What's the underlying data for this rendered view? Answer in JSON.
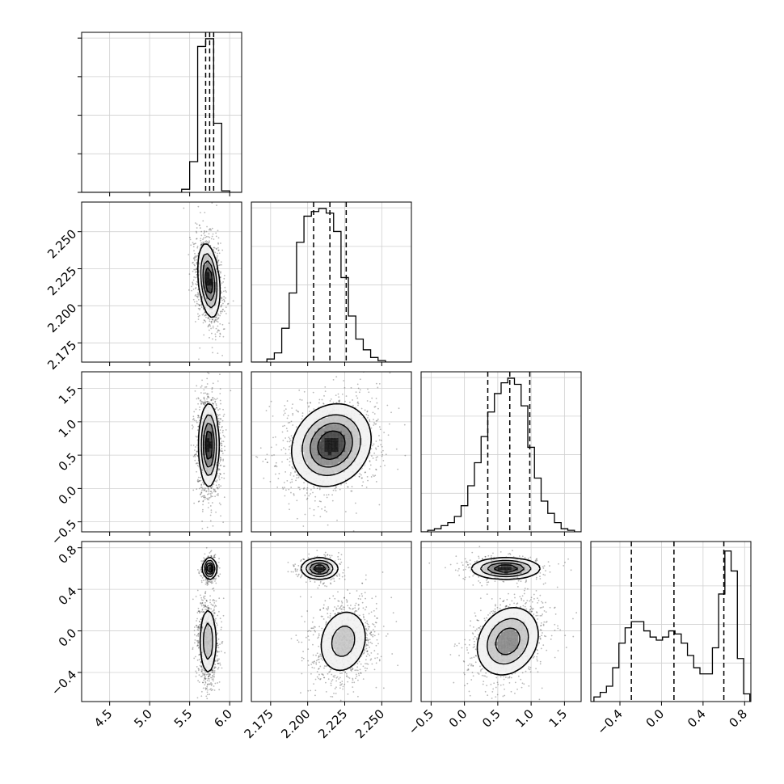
{
  "chart_data": {
    "type": "corner",
    "title": "",
    "grid": true,
    "params": [
      {
        "range": [
          4.15,
          6.15
        ],
        "ticks": [
          4.5,
          5.0,
          5.5,
          6.0
        ],
        "tick_labels": [
          "4.5",
          "5.0",
          "5.5",
          "6.0"
        ]
      },
      {
        "range": [
          2.162,
          2.27
        ],
        "ticks": [
          2.175,
          2.2,
          2.225,
          2.25
        ],
        "tick_labels": [
          "2.175",
          "2.200",
          "2.225",
          "2.250"
        ]
      },
      {
        "range": [
          -0.65,
          1.75
        ],
        "ticks": [
          -0.5,
          0.0,
          0.5,
          1.0,
          1.5
        ],
        "tick_labels": [
          "−0.5",
          "0.0",
          "0.5",
          "1.0",
          "1.5"
        ]
      },
      {
        "range": [
          -0.68,
          0.86
        ],
        "ticks": [
          -0.4,
          0.0,
          0.4,
          0.8
        ],
        "tick_labels": [
          "−0.4",
          "0.0",
          "0.4",
          "0.8"
        ]
      }
    ],
    "histograms": [
      {
        "x": [
          5.45,
          5.55,
          5.65,
          5.75,
          5.85,
          5.95
        ],
        "values": [
          0.02,
          0.2,
          0.95,
          1.0,
          0.45,
          0.01
        ],
        "quantiles": [
          5.7,
          5.75,
          5.8
        ]
      },
      {
        "x": [
          2.175,
          2.18,
          2.185,
          2.19,
          2.195,
          2.2,
          2.205,
          2.21,
          2.215,
          2.22,
          2.225,
          2.23,
          2.235,
          2.24,
          2.245,
          2.25,
          2.255
        ],
        "values": [
          0.02,
          0.06,
          0.22,
          0.45,
          0.78,
          0.95,
          0.98,
          1.0,
          0.97,
          0.85,
          0.55,
          0.3,
          0.15,
          0.08,
          0.03,
          0.01,
          0.0
        ],
        "quantiles": [
          2.204,
          2.215,
          2.226
        ]
      },
      {
        "x": [
          -0.6,
          -0.5,
          -0.4,
          -0.3,
          -0.2,
          -0.1,
          0.0,
          0.1,
          0.2,
          0.3,
          0.4,
          0.5,
          0.6,
          0.7,
          0.8,
          0.9,
          1.0,
          1.1,
          1.2,
          1.3,
          1.4,
          1.5,
          1.6
        ],
        "values": [
          0.0,
          0.01,
          0.02,
          0.04,
          0.06,
          0.1,
          0.17,
          0.3,
          0.45,
          0.62,
          0.78,
          0.9,
          0.97,
          1.0,
          0.96,
          0.82,
          0.55,
          0.35,
          0.2,
          0.12,
          0.06,
          0.02,
          0.01
        ],
        "quantiles": [
          0.35,
          0.68,
          0.98
        ]
      },
      {
        "x": [
          -0.62,
          -0.56,
          -0.5,
          -0.44,
          -0.38,
          -0.32,
          -0.26,
          -0.2,
          -0.14,
          -0.08,
          -0.02,
          0.04,
          0.1,
          0.16,
          0.22,
          0.28,
          0.34,
          0.4,
          0.46,
          0.52,
          0.58,
          0.64,
          0.7,
          0.76,
          0.82
        ],
        "values": [
          0.03,
          0.06,
          0.1,
          0.22,
          0.38,
          0.48,
          0.52,
          0.52,
          0.46,
          0.42,
          0.4,
          0.42,
          0.46,
          0.44,
          0.38,
          0.3,
          0.22,
          0.18,
          0.18,
          0.35,
          0.7,
          0.98,
          0.85,
          0.28,
          0.05
        ],
        "quantiles": [
          -0.29,
          0.12,
          0.6
        ]
      }
    ],
    "pairs": [
      {
        "row": 1,
        "col": 0,
        "components": [
          {
            "mx": 5.74,
            "my": 2.217,
            "sx": 0.065,
            "sy": 0.012,
            "rho": -0.3,
            "w": 1
          }
        ]
      },
      {
        "row": 2,
        "col": 0,
        "components": [
          {
            "mx": 5.74,
            "my": 0.65,
            "sx": 0.06,
            "sy": 0.3,
            "rho": 0.0,
            "w": 1
          }
        ]
      },
      {
        "row": 2,
        "col": 1,
        "components": [
          {
            "mx": 2.216,
            "my": 0.65,
            "sx": 0.013,
            "sy": 0.3,
            "rho": 0.15,
            "w": 1
          }
        ]
      },
      {
        "row": 3,
        "col": 0,
        "components": [
          {
            "mx": 5.75,
            "my": 0.6,
            "sx": 0.04,
            "sy": 0.05,
            "rho": 0,
            "w": 0.3
          },
          {
            "mx": 5.73,
            "my": -0.1,
            "sx": 0.055,
            "sy": 0.17,
            "rho": 0,
            "w": 0.7
          }
        ]
      },
      {
        "row": 3,
        "col": 1,
        "components": [
          {
            "mx": 2.208,
            "my": 0.6,
            "sx": 0.006,
            "sy": 0.05,
            "rho": 0,
            "w": 0.3
          },
          {
            "mx": 2.224,
            "my": -0.1,
            "sx": 0.009,
            "sy": 0.17,
            "rho": 0.15,
            "w": 0.7
          }
        ]
      },
      {
        "row": 3,
        "col": 2,
        "components": [
          {
            "mx": 0.62,
            "my": 0.6,
            "sx": 0.25,
            "sy": 0.05,
            "rho": 0,
            "w": 0.3
          },
          {
            "mx": 0.65,
            "my": -0.1,
            "sx": 0.24,
            "sy": 0.17,
            "rho": 0.2,
            "w": 0.7
          }
        ]
      }
    ]
  }
}
